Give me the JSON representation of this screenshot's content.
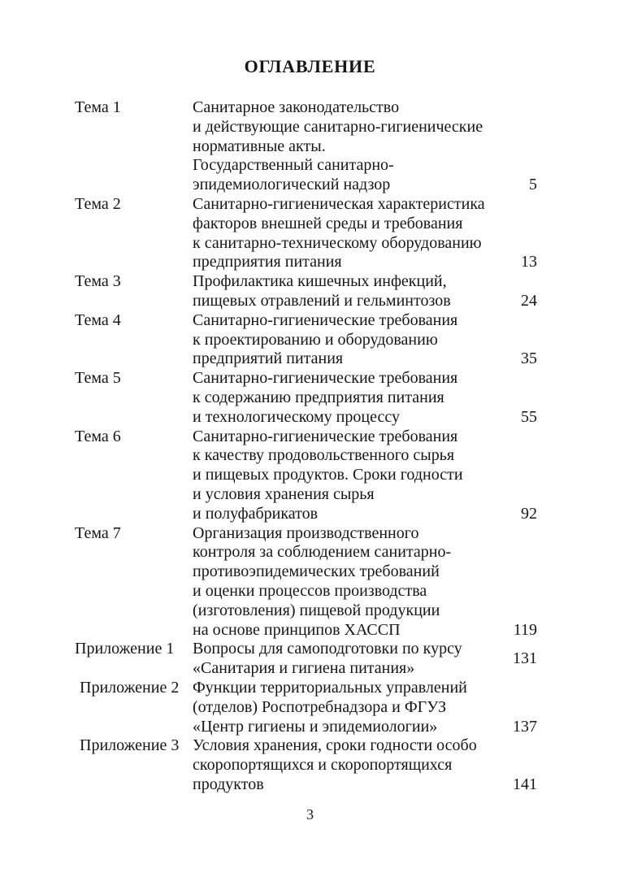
{
  "page": {
    "title": "ОГЛАВЛЕНИЕ",
    "footer_page_number": "3"
  },
  "toc": {
    "entries": [
      {
        "label": "Тема 1",
        "lines": [
          "Санитарное законодательство",
          "и действующие санитарно-гигиенические",
          "нормативные акты.",
          "Государственный санитарно-",
          "эпидемиологический надзор"
        ],
        "page": "5"
      },
      {
        "label": "Тема 2",
        "lines": [
          "Санитарно-гигиеническая характеристика",
          "факторов внешней среды и требования",
          "к санитарно-техническому оборудованию",
          "предприятия питания"
        ],
        "page": "13"
      },
      {
        "label": "Тема 3",
        "lines": [
          "Профилактика кишечных инфекций,",
          "пищевых отравлений и гельминтозов"
        ],
        "page": "24"
      },
      {
        "label": "Тема 4",
        "lines": [
          "Санитарно-гигиенические требования",
          "к проектированию и оборудованию",
          "предприятий питания"
        ],
        "page": "35"
      },
      {
        "label": "Тема 5",
        "lines": [
          "Санитарно-гигиенические требования",
          "к содержанию предприятия питания",
          "и технологическому процессу"
        ],
        "page": "55"
      },
      {
        "label": "Тема 6",
        "lines": [
          "Санитарно-гигиенические требования",
          "к качеству продовольственного сырья",
          "и пищевых продуктов. Сроки годности",
          "и условия хранения сырья",
          "и полуфабрикатов"
        ],
        "page": "92"
      },
      {
        "label": "Тема 7",
        "lines": [
          "Организация производственного",
          "контроля за соблюдением санитарно-",
          "противоэпидемических требований",
          "и оценки процессов производства",
          "(изготовления) пищевой продукции",
          "на основе принципов ХАССП"
        ],
        "page": "119"
      },
      {
        "label": "Приложение 1",
        "lines": [
          "Вопросы для самоподготовки по курсу",
          "«Санитария и гигиена питания»"
        ],
        "page": "131"
      },
      {
        "label": "Приложение 2",
        "lines": [
          "Функции территориальных управлений",
          "(отделов) Роспотребнадзора и ФГУЗ",
          "«Центр гигиены и эпидемиологии»"
        ],
        "page": "137"
      },
      {
        "label": "Приложение 3",
        "lines": [
          "Условия хранения, сроки годности особо",
          "скоропортящихся и скоропортящихся",
          "продуктов"
        ],
        "page": "141"
      }
    ]
  }
}
